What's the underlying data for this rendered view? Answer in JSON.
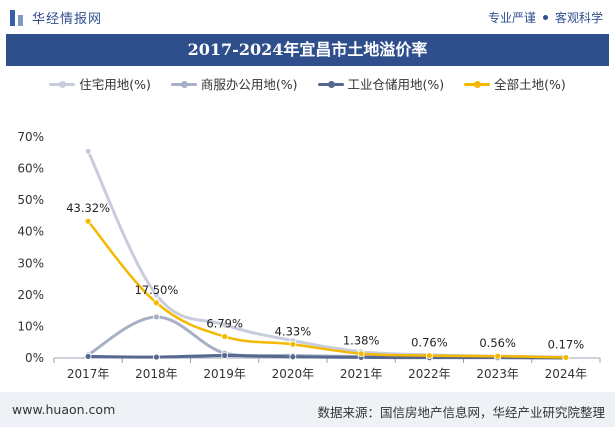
{
  "header": {
    "brand_name": "华经情报网",
    "tag1": "专业严谨",
    "tag2": "客观科学"
  },
  "footer": {
    "url": "www.huaon.com",
    "source": "数据来源：国信房地产信息网，华经产业研究院整理"
  },
  "colors": {
    "header_bar": "#2e4f8c",
    "residential": "#c7cddd",
    "commercial": "#a7b0c7",
    "industrial": "#56688f",
    "all": "#f5b800"
  },
  "chart_data": {
    "type": "line",
    "title": "2017-2024年宜昌市土地溢价率",
    "categories": [
      "2017年",
      "2018年",
      "2019年",
      "2020年",
      "2021年",
      "2022年",
      "2023年",
      "2024年"
    ],
    "y_ticks": [
      "0%",
      "10%",
      "20%",
      "30%",
      "40%",
      "50%",
      "60%",
      "70%"
    ],
    "ylim": [
      0,
      70
    ],
    "legend_position": "top",
    "grid": false,
    "series": [
      {
        "name": "住宅用地(%)",
        "values": [
          65.5,
          20.0,
          10.5,
          5.5,
          2.0,
          1.0,
          0.6,
          0.3
        ]
      },
      {
        "name": "商服办公用地(%)",
        "values": [
          1.0,
          13.0,
          1.5,
          0.8,
          0.5,
          0.4,
          0.3,
          0.1
        ]
      },
      {
        "name": "工业仓储用地(%)",
        "values": [
          0.5,
          0.3,
          0.8,
          0.4,
          0.2,
          0.1,
          0.1,
          0.0
        ]
      },
      {
        "name": "全部土地(%)",
        "values": [
          43.32,
          17.5,
          6.79,
          4.33,
          1.38,
          0.76,
          0.56,
          0.17
        ],
        "labels": [
          "43.32%",
          "17.50%",
          "6.79%",
          "4.33%",
          "1.38%",
          "0.76%",
          "0.56%",
          "0.17%"
        ]
      }
    ]
  }
}
